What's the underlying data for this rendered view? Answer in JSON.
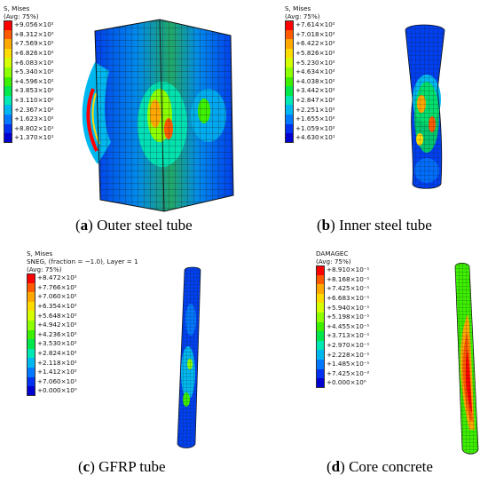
{
  "panels": [
    {
      "id": "a",
      "letter": "a",
      "caption": "Outer steel tube",
      "legend_title_lines": [
        "S, Mises",
        "(Avg: 75%)"
      ],
      "legend_values": [
        "+9.056×10²",
        "+8.312×10²",
        "+7.569×10²",
        "+6.826×10²",
        "+6.083×10²",
        "+5.340×10²",
        "+4.596×10²",
        "+3.853×10²",
        "+3.110×10²",
        "+2.367×10²",
        "+1.623×10²",
        "+8.802×10¹",
        "+1.370×10¹"
      ]
    },
    {
      "id": "b",
      "letter": "b",
      "caption": "Inner steel tube",
      "legend_title_lines": [
        "S, Mises",
        "(Avg: 75%)"
      ],
      "legend_values": [
        "+7.614×10²",
        "+7.018×10²",
        "+6.422×10²",
        "+5.826×10²",
        "+5.230×10²",
        "+4.634×10²",
        "+4.038×10²",
        "+3.442×10²",
        "+2.847×10²",
        "+2.251×10²",
        "+1.655×10²",
        "+1.059×10²",
        "+4.630×10¹"
      ]
    },
    {
      "id": "c",
      "letter": "c",
      "caption": "GFRP tube",
      "legend_title_lines": [
        "S, Mises",
        "SNEG, (fraction = −1.0), Layer = 1",
        "(Avg: 75%)"
      ],
      "legend_values": [
        "+8.472×10²",
        "+7.766×10²",
        "+7.060×10²",
        "+6.354×10²",
        "+5.648×10²",
        "+4.942×10²",
        "+4.236×10²",
        "+3.530×10²",
        "+2.824×10²",
        "+2.118×10²",
        "+1.412×10²",
        "+7.060×10¹",
        "+0.000×10⁰"
      ]
    },
    {
      "id": "d",
      "letter": "d",
      "caption": "Core concrete",
      "legend_title_lines": [
        "DAMAGEC",
        "(Avg: 75%)"
      ],
      "legend_values": [
        "+8.910×10⁻¹",
        "+8.168×10⁻¹",
        "+7.425×10⁻¹",
        "+6.683×10⁻¹",
        "+5.940×10⁻¹",
        "+5.198×10⁻¹",
        "+4.455×10⁻¹",
        "+3.713×10⁻¹",
        "+2.970×10⁻¹",
        "+2.228×10⁻¹",
        "+1.485×10⁻¹",
        "+7.425×10⁻²",
        "+0.000×10⁰"
      ]
    }
  ],
  "colormap": [
    "#ff0000",
    "#ff5a00",
    "#ffa800",
    "#ffdc00",
    "#d4ff00",
    "#8cff00",
    "#3cf000",
    "#00e84c",
    "#00e8b4",
    "#00b8f0",
    "#0078ff",
    "#0030f0",
    "#0000d0"
  ],
  "colors": {
    "mesh_line": "#1a1a1a",
    "text": "#000000",
    "background": "#ffffff"
  }
}
